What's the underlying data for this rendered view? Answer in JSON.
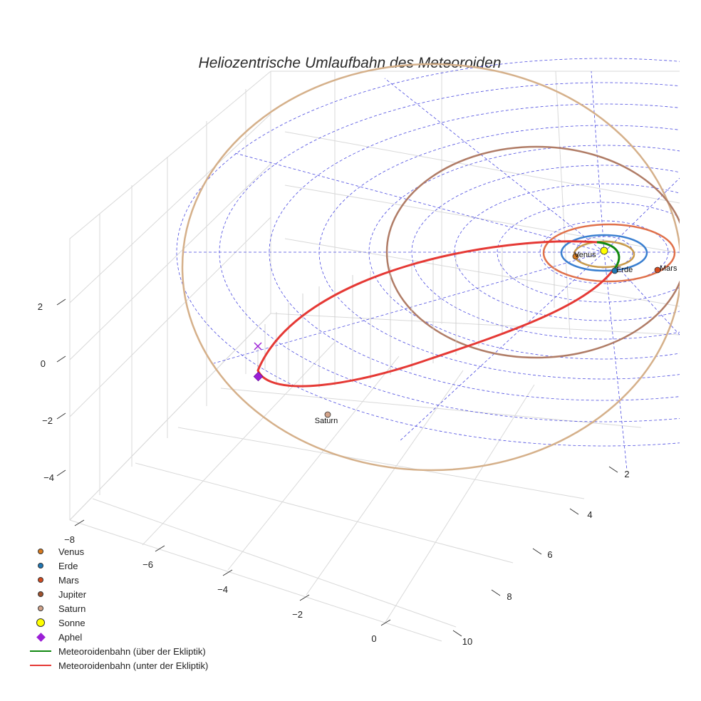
{
  "chart_data": {
    "type": "scatter3d",
    "title": "Heliozentrische Umlaufbahn des Meteoroiden",
    "axes": {
      "x": {
        "ticks": [
          "−8",
          "−6",
          "−4",
          "−2",
          "0"
        ]
      },
      "y": {
        "ticks": [
          "2",
          "4",
          "6",
          "8",
          "10"
        ]
      },
      "z": {
        "ticks": [
          "2",
          "0",
          "−2",
          "−4"
        ]
      }
    },
    "bodies": [
      {
        "name": "Venus",
        "color": "#d87a1e"
      },
      {
        "name": "Erde",
        "color": "#1f77b4"
      },
      {
        "name": "Mars",
        "color": "#d44a1e"
      },
      {
        "name": "Jupiter",
        "color": "#a0522d"
      },
      {
        "name": "Saturn",
        "color": "#d2a38a"
      },
      {
        "name": "Sonne",
        "color": "#ffff00"
      }
    ],
    "orbit_colors": {
      "venus": "#c89a4a",
      "earth": "#3a7fd0",
      "mars": "#e0704a",
      "jupiter": "#b07c66",
      "saturn": "#d5b08a",
      "grid": "#4a4ae0",
      "meteoroid_above": "#118811",
      "meteoroid_below": "#e53935",
      "aphel": "#9b1fd6"
    },
    "legend": [
      {
        "label": "Venus",
        "kind": "dot",
        "color": "#d87a1e"
      },
      {
        "label": "Erde",
        "kind": "dot",
        "color": "#1f77b4"
      },
      {
        "label": "Mars",
        "kind": "dot",
        "color": "#d44a1e"
      },
      {
        "label": "Jupiter",
        "kind": "dot",
        "color": "#a0522d"
      },
      {
        "label": "Saturn",
        "kind": "dot",
        "color": "#d2a38a"
      },
      {
        "label": "Sonne",
        "kind": "bigdot",
        "color": "#ffff00"
      },
      {
        "label": "Aphel",
        "kind": "diamond",
        "color": "#9b1fd6"
      },
      {
        "label": "Meteoroidenbahn (über der Ekliptik)",
        "kind": "line",
        "color": "#118811"
      },
      {
        "label": "Meteoroidenbahn (unter der Ekliptik)",
        "kind": "line",
        "color": "#e53935"
      }
    ]
  }
}
